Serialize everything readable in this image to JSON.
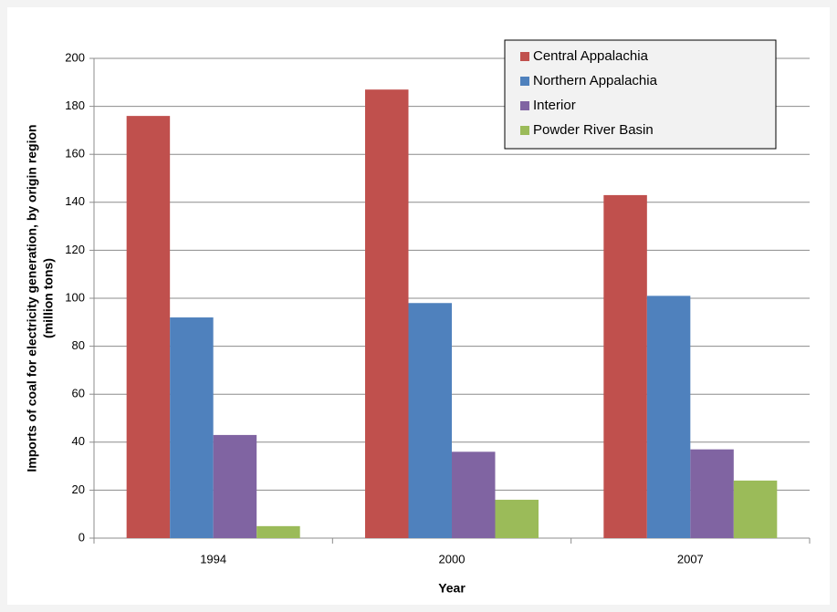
{
  "chart_data": {
    "type": "bar",
    "xlabel": "Year",
    "ylabel": [
      "Imports of coal for electricity generation, by origin region",
      "(million tons)"
    ],
    "categories": [
      "1994",
      "2000",
      "2007"
    ],
    "series": [
      {
        "name": "Central Appalachia",
        "color": "#c0504d",
        "values": [
          176,
          187,
          143
        ]
      },
      {
        "name": "Northern Appalachia",
        "color": "#4f81bd",
        "values": [
          92,
          98,
          101
        ]
      },
      {
        "name": "Interior",
        "color": "#8064a2",
        "values": [
          43,
          36,
          37
        ]
      },
      {
        "name": "Powder River Basin",
        "color": "#9bbb59",
        "values": [
          5,
          16,
          24
        ]
      }
    ],
    "ylim": [
      0,
      200
    ],
    "yticks": [
      0,
      20,
      40,
      60,
      80,
      100,
      120,
      140,
      160,
      180,
      200
    ],
    "grid": true,
    "legend": "top-right"
  }
}
